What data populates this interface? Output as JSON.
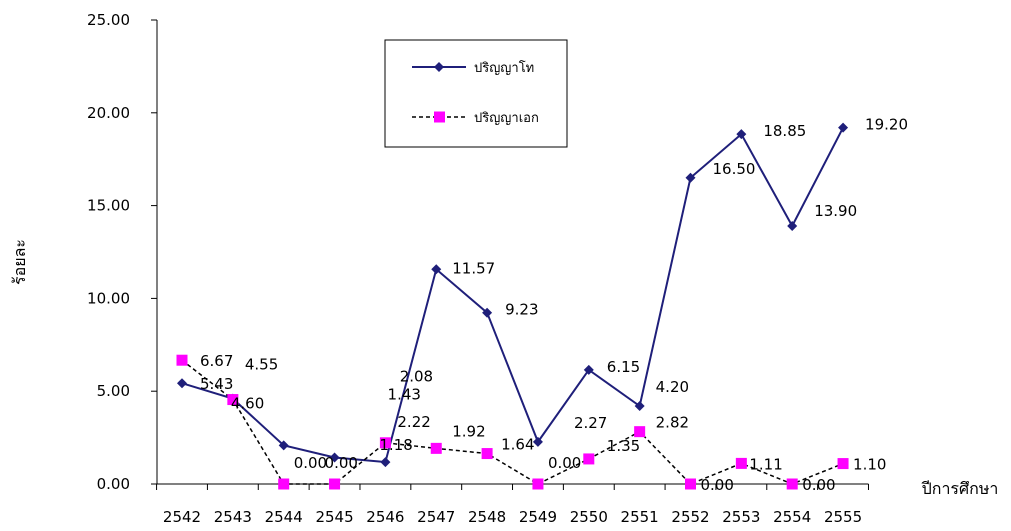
{
  "chart_data": {
    "type": "line",
    "xlabel": "ปีการศึกษา",
    "ylabel": "ร้อยละ",
    "ylim": [
      0,
      25
    ],
    "yticks": [
      "0.00",
      "5.00",
      "10.00",
      "15.00",
      "20.00",
      "25.00"
    ],
    "categories": [
      "2542",
      "2543",
      "2544",
      "2545",
      "2546",
      "2547",
      "2548",
      "2549",
      "2550",
      "2551",
      "2552",
      "2553",
      "2554",
      "2555"
    ],
    "legend_position": "top-center",
    "grid": false,
    "series": [
      {
        "name": "ปริญญาโท",
        "color": "#1F1F7A",
        "line_style": "solid",
        "marker": "diamond",
        "values": [
          5.43,
          4.6,
          2.08,
          1.43,
          1.18,
          11.57,
          9.23,
          2.27,
          6.15,
          4.2,
          16.5,
          18.85,
          13.9,
          19.2
        ],
        "labels": [
          "5.43",
          "4.60",
          "2.08",
          "1.43",
          "1.18",
          "11.57",
          "9.23",
          "2.27",
          "6.15",
          "4.20",
          "16.50",
          "18.85",
          "13.90",
          "19.20"
        ]
      },
      {
        "name": "ปริญญาเอก",
        "color": "#FF00FF",
        "line_color": "#000000",
        "line_style": "dashed",
        "marker": "square",
        "values": [
          6.67,
          4.55,
          0.0,
          0.0,
          2.22,
          1.92,
          1.64,
          0.0,
          1.35,
          2.82,
          0.0,
          1.11,
          0.0,
          1.1
        ],
        "labels": [
          "6.67",
          "4.55",
          "0.00",
          "0.00",
          "2.22",
          "1.92",
          "1.64",
          "0.00",
          "1.35",
          "2.82",
          "0.00",
          "1.11",
          "0.00",
          "1.10"
        ],
        "line_segments_drawn": [
          0,
          1,
          2,
          3,
          4,
          5,
          6,
          7,
          8,
          9,
          10,
          11,
          12
        ]
      }
    ]
  }
}
